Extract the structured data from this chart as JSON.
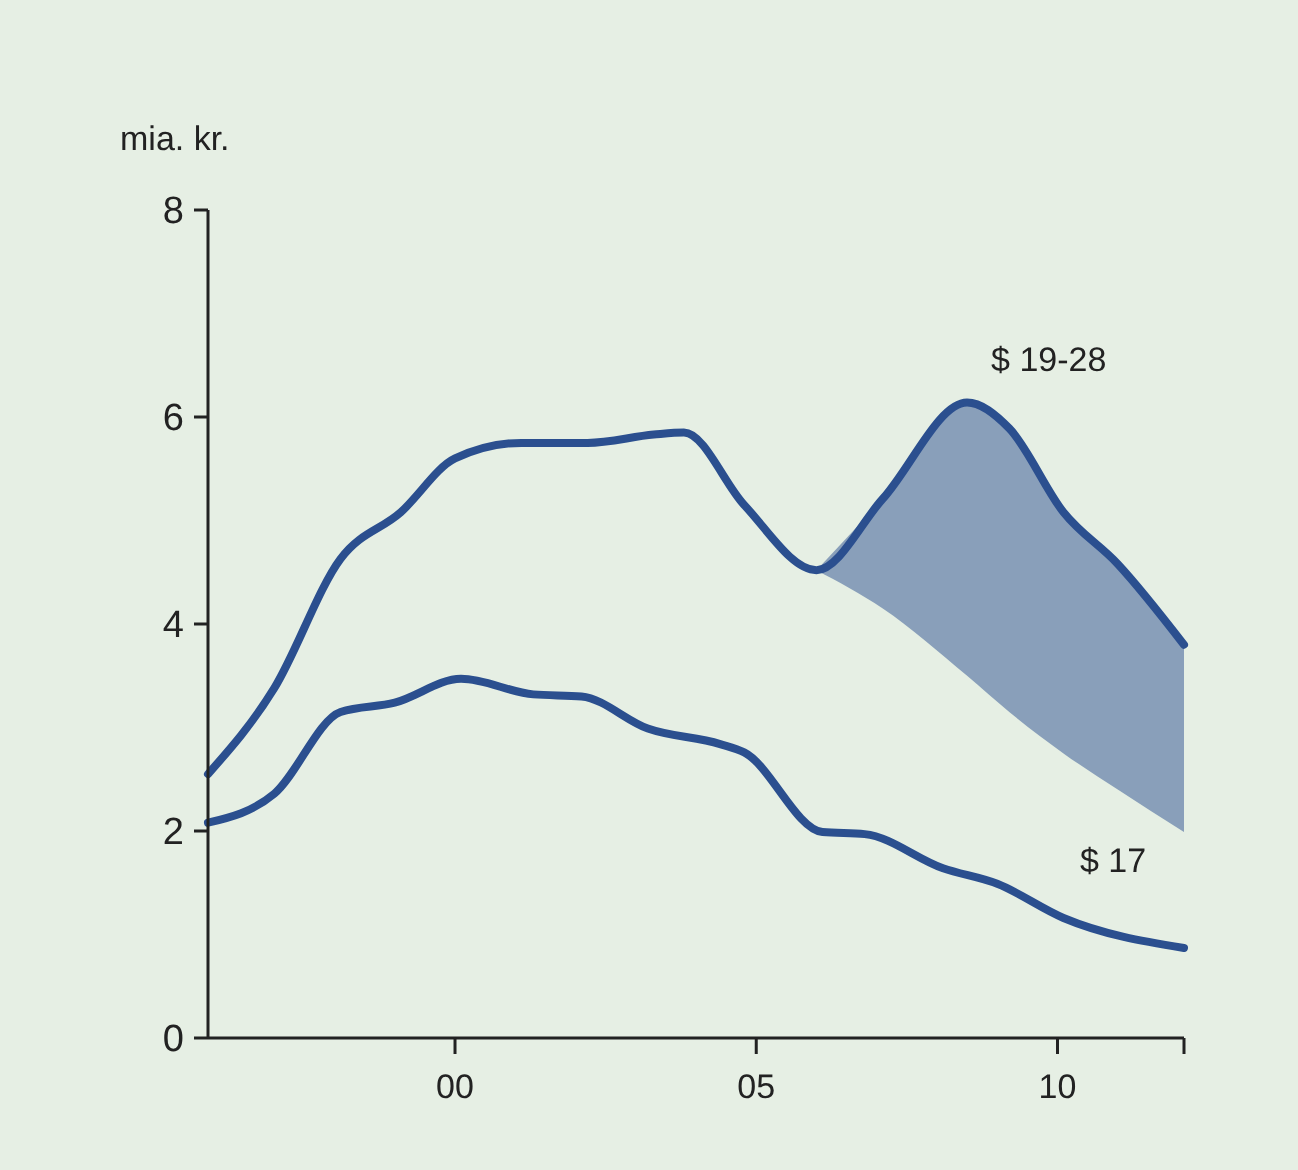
{
  "chart_data": {
    "type": "line",
    "ylabel": "mia. kr.",
    "xlim": [
      1995.9,
      2012.1
    ],
    "ylim": [
      0,
      8
    ],
    "yticks": [
      0,
      2,
      4,
      6,
      8
    ],
    "xticks": [
      {
        "value": 2000,
        "label": "00"
      },
      {
        "value": 2005,
        "label": "05"
      },
      {
        "value": 2010,
        "label": "10"
      },
      {
        "value": 2012.1,
        "label": null
      }
    ],
    "grid": false,
    "marker": "none",
    "line_style": "solid",
    "series": [
      {
        "name": "$ 19-28",
        "color": "#2b4f8f",
        "x": [
          1995.9,
          1997,
          1998.1,
          1999.1,
          2000,
          2001.1,
          2002.2,
          2003.3,
          2003.8,
          2004.8,
          2006,
          2007.1,
          2008.5,
          2009.2,
          2010.1,
          2011,
          2012.1
        ],
        "values": [
          2.55,
          3.38,
          4.63,
          5.08,
          5.6,
          5.75,
          5.75,
          5.83,
          5.85,
          5.15,
          4.52,
          5.21,
          6.14,
          5.89,
          5.08,
          4.58,
          3.8
        ],
        "lower": [
          null,
          null,
          null,
          null,
          null,
          null,
          null,
          null,
          null,
          null,
          4.52,
          4.15,
          3.5,
          3.15,
          2.75,
          2.4,
          1.99
        ],
        "upper": [
          null,
          null,
          null,
          null,
          null,
          null,
          null,
          null,
          null,
          null,
          4.52,
          5.21,
          6.14,
          5.89,
          5.08,
          4.58,
          3.8
        ]
      },
      {
        "name": "$ 17",
        "color": "#2b4f8f",
        "x": [
          1995.9,
          1997,
          1998.1,
          1999,
          2000.1,
          2001.3,
          2002.1,
          2003.2,
          2004.4,
          2004.8,
          2006.1,
          2006.8,
          2008.1,
          2009,
          2010.1,
          2012.1
        ],
        "values": [
          2.08,
          2.36,
          3.15,
          3.24,
          3.47,
          3.32,
          3.3,
          2.99,
          2.84,
          2.76,
          1.99,
          1.97,
          1.64,
          1.49,
          1.16,
          0.87
        ]
      }
    ]
  }
}
